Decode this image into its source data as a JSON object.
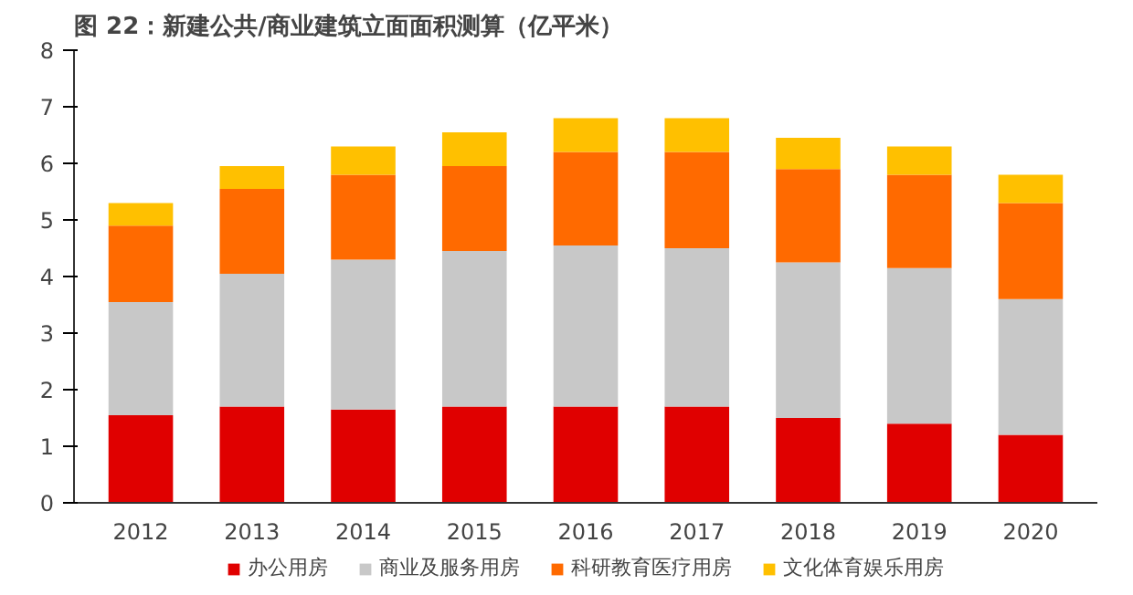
{
  "chart_data": {
    "type": "bar",
    "stacked": true,
    "title": "图 22：新建公共/商业建筑立面面积测算（亿平米）",
    "categories": [
      "2012",
      "2013",
      "2014",
      "2015",
      "2016",
      "2017",
      "2018",
      "2019",
      "2020"
    ],
    "series": [
      {
        "name": "办公用房",
        "color": "#e00000",
        "values": [
          1.55,
          1.7,
          1.65,
          1.7,
          1.7,
          1.7,
          1.5,
          1.4,
          1.2
        ]
      },
      {
        "name": "商业及服务用房",
        "color": "#c8c8c8",
        "values": [
          2.0,
          2.35,
          2.65,
          2.75,
          2.85,
          2.8,
          2.75,
          2.75,
          2.4
        ]
      },
      {
        "name": "科研教育医疗用房",
        "color": "#ff6a00",
        "values": [
          1.35,
          1.5,
          1.5,
          1.5,
          1.65,
          1.7,
          1.65,
          1.65,
          1.7
        ]
      },
      {
        "name": "文化体育娱乐用房",
        "color": "#ffc000",
        "values": [
          0.4,
          0.4,
          0.5,
          0.6,
          0.6,
          0.6,
          0.55,
          0.5,
          0.5
        ]
      }
    ],
    "ylim": [
      0,
      8
    ],
    "yticks": [
      0,
      1,
      2,
      3,
      4,
      5,
      6,
      7,
      8
    ],
    "grid": false,
    "legend": "bottom"
  }
}
